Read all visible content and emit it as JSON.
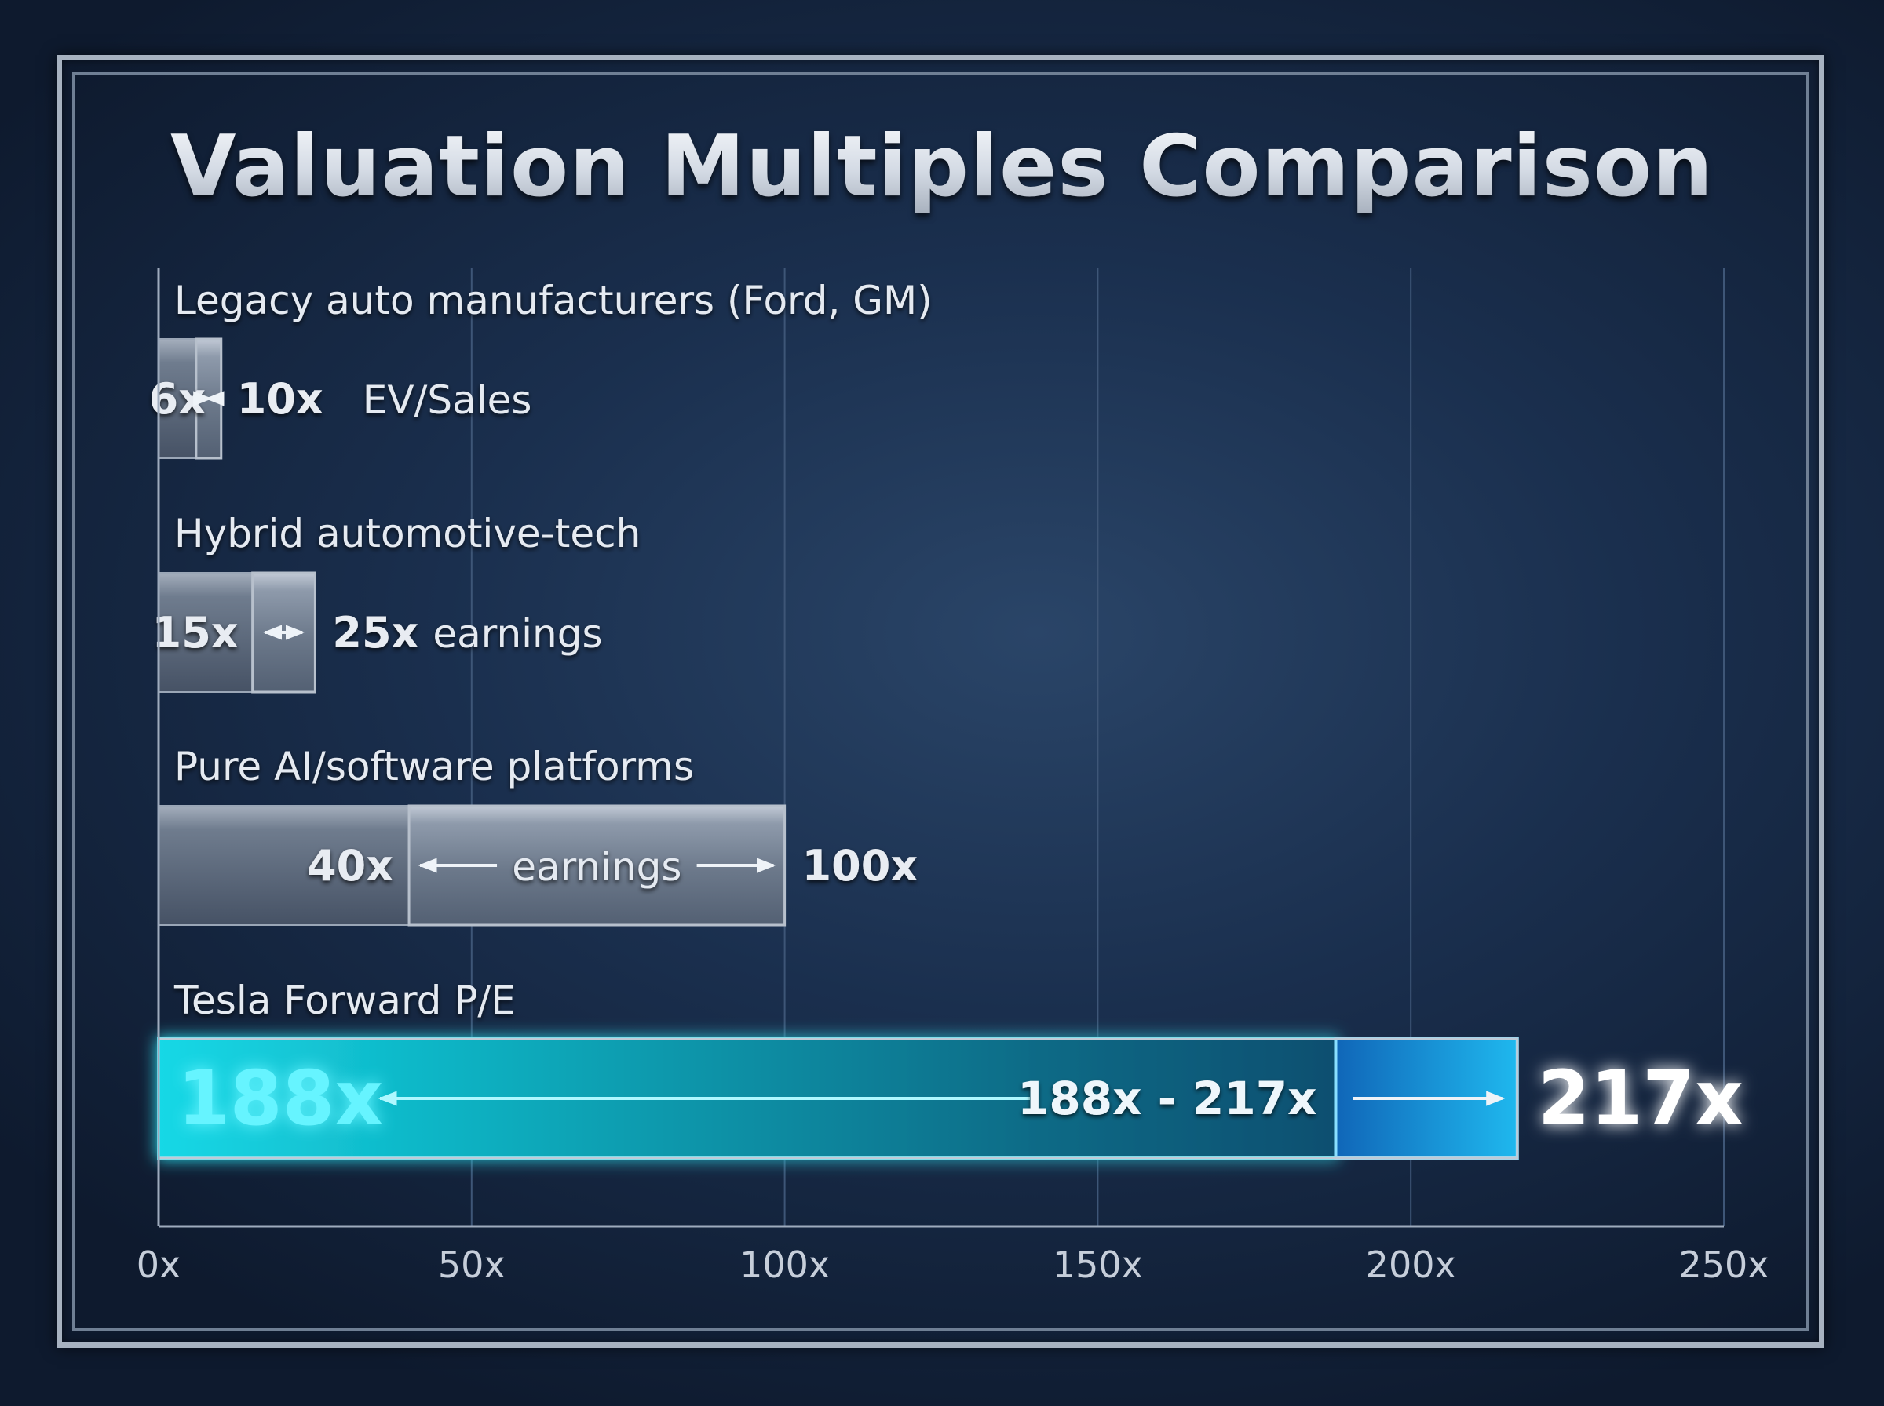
{
  "chart_data": {
    "type": "bar",
    "title": "Valuation Multiples Comparison",
    "x_axis": {
      "range": [
        0,
        250
      ],
      "ticks": [
        0,
        50,
        100,
        150,
        200,
        250
      ],
      "tick_labels": [
        "0x",
        "50x",
        "100x",
        "150x",
        "200x",
        "250x"
      ],
      "grid": true
    },
    "series": [
      {
        "category": "Legacy auto manufacturers (Ford, GM)",
        "low": 6,
        "high": 10,
        "low_label": "6x",
        "high_label": "10x",
        "metric": "EV/Sales",
        "base": 0
      },
      {
        "category": "Hybrid automotive-tech",
        "low": 15,
        "high": 25,
        "low_label": "15x",
        "high_label": "25x",
        "metric": "earnings",
        "base": 0
      },
      {
        "category": "Pure AI/software platforms",
        "low": 40,
        "high": 100,
        "low_label": "40x",
        "high_label": "100x",
        "metric": "earnings",
        "base": 0
      },
      {
        "category": "Tesla Forward P/E",
        "low": 188,
        "high": 217,
        "low_label": "188x",
        "high_label": "217x",
        "range_label": "188x - 217x",
        "base": 0,
        "highlight": true
      }
    ]
  },
  "colors": {
    "background": "#14253f",
    "steel_bar": "#7d8a9c",
    "tesla_bar": "#0fb4c6",
    "tesla_text": "#5ff3ff"
  }
}
